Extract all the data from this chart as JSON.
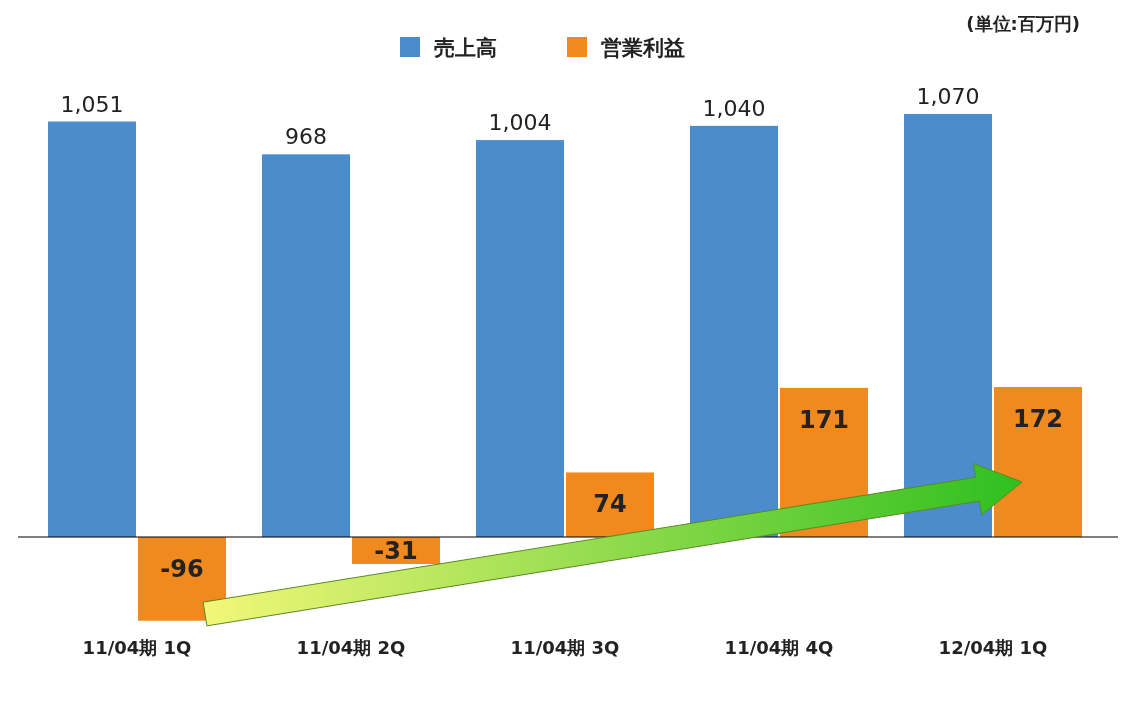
{
  "chart_data": {
    "type": "bar",
    "categories": [
      "11/04期 1Q",
      "11/04期 2Q",
      "11/04期 3Q",
      "11/04期 4Q",
      "12/04期 1Q"
    ],
    "series": [
      {
        "name": "売上高",
        "color": "#4a8ccc",
        "values": [
          1051,
          968,
          1004,
          1040,
          1070
        ],
        "value_labels": [
          "1,051",
          "968",
          "1,004",
          "1,040",
          "1,070"
        ]
      },
      {
        "name": "営業利益",
        "color": "#f0891e",
        "values": [
          -96,
          -31,
          74,
          171,
          172
        ],
        "value_labels": [
          "-96",
          "-31",
          "74",
          "171",
          "172"
        ],
        "axis": "y2"
      }
    ],
    "legend": "top",
    "annotations": [
      "(単位:百万円)"
    ]
  }
}
